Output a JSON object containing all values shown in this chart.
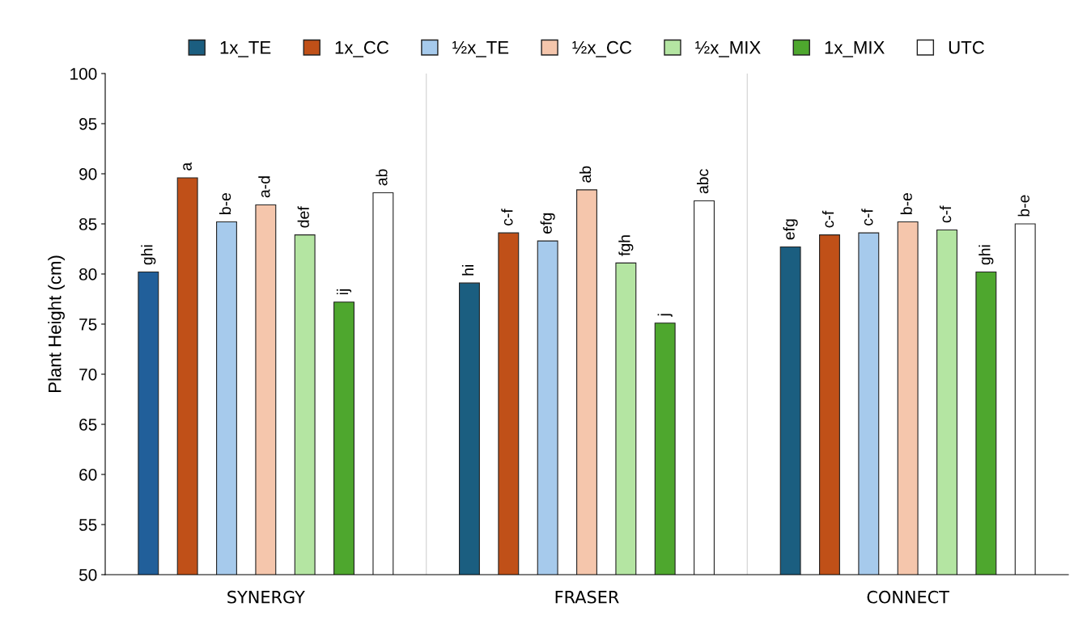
{
  "chart_data": {
    "type": "bar",
    "ylabel": "Plant Height (cm)",
    "categories": [
      "SYNERGY",
      "FRASER",
      "CONNECT"
    ],
    "series": [
      {
        "name": "1x_TE",
        "color": "#1b5e80",
        "colors": [
          "#215f9a",
          "#1b5e80",
          "#1b5e80"
        ],
        "values": [
          80.2,
          79.1,
          82.7
        ],
        "value_labels": [
          "ghi",
          "hi",
          "efg"
        ]
      },
      {
        "name": "1x_CC",
        "color": "#c05018",
        "values": [
          89.6,
          84.1,
          83.9
        ],
        "value_labels": [
          "a",
          "c-f",
          "c-f"
        ]
      },
      {
        "name": "½x_TE",
        "color": "#a6caec",
        "values": [
          85.2,
          83.3,
          84.1
        ],
        "value_labels": [
          "b-e",
          "efg",
          "c-f"
        ]
      },
      {
        "name": "½x_CC",
        "color": "#f5c6ac",
        "values": [
          86.9,
          88.4,
          85.2
        ],
        "value_labels": [
          "a-d",
          "ab",
          "b-e"
        ]
      },
      {
        "name": "½x_MIX",
        "color": "#b4e5a2",
        "values": [
          83.9,
          81.1,
          84.4
        ],
        "value_labels": [
          "def",
          "fgh",
          "c-f"
        ]
      },
      {
        "name": "1x_MIX",
        "color": "#4ea72e",
        "values": [
          77.2,
          75.1,
          80.2
        ],
        "value_labels": [
          "ij",
          "j",
          "ghi"
        ]
      },
      {
        "name": "UTC",
        "color": "#ffffff",
        "values": [
          88.1,
          87.3,
          85.0
        ],
        "value_labels": [
          "ab",
          "abc",
          "b-e"
        ]
      }
    ],
    "ylim": [
      50,
      100
    ],
    "yticks": [
      50,
      55,
      60,
      65,
      70,
      75,
      80,
      85,
      90,
      95,
      100
    ],
    "grid": false,
    "legend": "top"
  }
}
